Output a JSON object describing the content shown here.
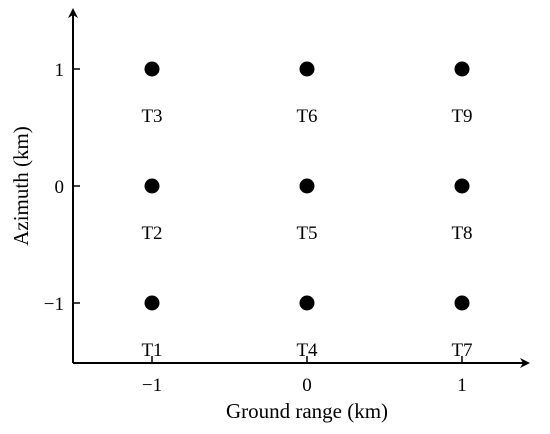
{
  "chart_data": {
    "type": "scatter",
    "xlabel": "Ground range (km)",
    "ylabel": "Azimuth (km)",
    "x_ticks": [
      {
        "value": -1,
        "label": "−1"
      },
      {
        "value": 0,
        "label": "0"
      },
      {
        "value": 1,
        "label": "1"
      }
    ],
    "y_ticks": [
      {
        "value": -1,
        "label": "−1"
      },
      {
        "value": 0,
        "label": "0"
      },
      {
        "value": 1,
        "label": "1"
      }
    ],
    "xlim": [
      -1.5,
      1.5
    ],
    "ylim": [
      -1.5,
      1.5
    ],
    "grid": false,
    "point_color": "#000000",
    "points": [
      {
        "x": -1,
        "y": -1,
        "label": "T1"
      },
      {
        "x": -1,
        "y": 0,
        "label": "T2"
      },
      {
        "x": -1,
        "y": 1,
        "label": "T3"
      },
      {
        "x": 0,
        "y": -1,
        "label": "T4"
      },
      {
        "x": 0,
        "y": 0,
        "label": "T5"
      },
      {
        "x": 0,
        "y": 1,
        "label": "T6"
      },
      {
        "x": 1,
        "y": -1,
        "label": "T7"
      },
      {
        "x": 1,
        "y": 0,
        "label": "T8"
      },
      {
        "x": 1,
        "y": 1,
        "label": "T9"
      }
    ]
  }
}
